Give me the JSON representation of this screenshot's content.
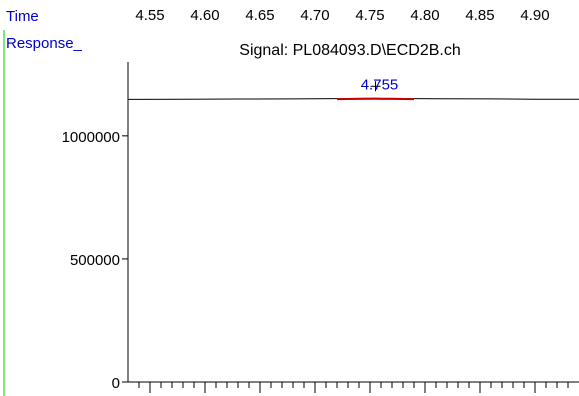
{
  "chart_data": {
    "type": "line",
    "title": "Signal: PL084093.D\\ECD2B.ch",
    "xlabel": "Time",
    "ylabel": "Response_",
    "x_tick_labels": [
      "4.55",
      "4.60",
      "4.65",
      "4.70",
      "4.75",
      "4.80",
      "4.85",
      "4.90"
    ],
    "x_ticks": [
      4.55,
      4.6,
      4.65,
      4.7,
      4.75,
      4.8,
      4.85,
      4.9
    ],
    "xlim": [
      4.53,
      4.94
    ],
    "x_minor_step": 0.01,
    "y_tick_labels": [
      "0",
      "500000",
      "1000000"
    ],
    "y_ticks": [
      0,
      500000,
      1000000
    ],
    "ylim": [
      0,
      1300000
    ],
    "grid": false,
    "legend": "none",
    "series": [
      {
        "x": [
          4.53,
          4.58,
          4.63,
          4.68,
          4.7,
          4.72,
          4.74,
          4.755,
          4.77,
          4.79,
          4.81,
          4.86,
          4.9,
          4.94
        ],
        "y": [
          1148000,
          1149000,
          1149500,
          1150000,
          1151000,
          1151500,
          1152000,
          1152500,
          1152000,
          1151500,
          1150500,
          1150000,
          1149000,
          1148500
        ],
        "color": "#000000"
      }
    ],
    "highlight": {
      "x_start": 4.72,
      "x_end": 4.79,
      "color": "#cc0000"
    },
    "annotations": [
      {
        "text": "4.755",
        "x": 4.755,
        "y": 1152500,
        "color": "#0000cc"
      }
    ]
  }
}
